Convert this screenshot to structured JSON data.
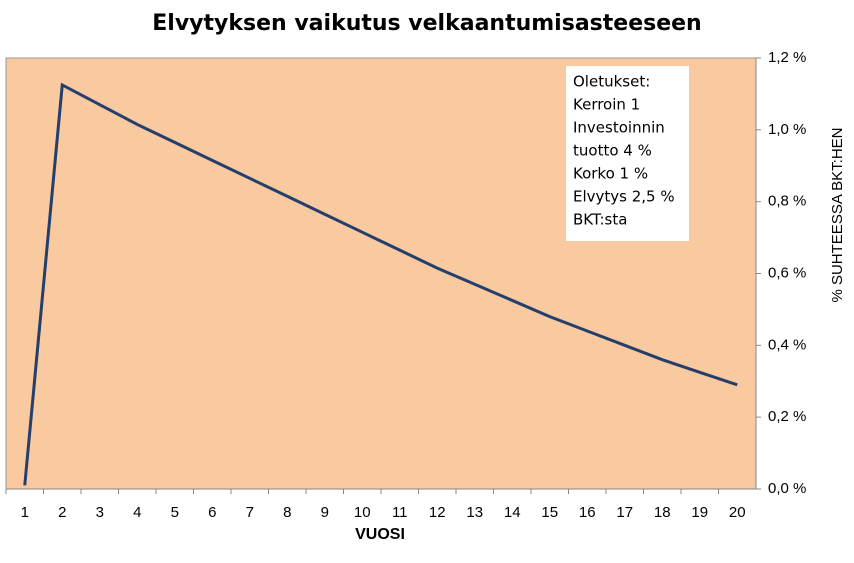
{
  "chart_data": {
    "type": "line",
    "title": "Elvytyksen vaikutus velkaantumisasteeseen",
    "x_label": "VUOSI",
    "y_label": "% SUHTEESSA BKT:HEN",
    "annotation": [
      "Oletukset:",
      "Kerroin 1",
      "Investoinnin",
      "tuotto 4 %",
      "Korko 1 %",
      "Elvytys 2,5 %",
      "BKT:sta"
    ],
    "categories": [
      "1",
      "2",
      "3",
      "4",
      "5",
      "6",
      "7",
      "8",
      "9",
      "10",
      "11",
      "12",
      "13",
      "14",
      "15",
      "16",
      "17",
      "18",
      "19",
      "20"
    ],
    "series": [
      {
        "name": "Velkaantumisaste",
        "color": "#243f6b",
        "values": [
          0.01,
          1.125,
          1.07,
          1.015,
          0.965,
          0.915,
          0.865,
          0.815,
          0.765,
          0.715,
          0.665,
          0.615,
          0.57,
          0.525,
          0.48,
          0.44,
          0.4,
          0.36,
          0.325,
          0.29
        ]
      }
    ],
    "ylim": [
      0,
      1.2
    ],
    "yticks": [
      {
        "value": 0,
        "label": "0,0 %"
      },
      {
        "value": 0.2,
        "label": "0,2 %"
      },
      {
        "value": 0.4,
        "label": "0,4 %"
      },
      {
        "value": 0.6,
        "label": "0,6 %"
      },
      {
        "value": 0.8,
        "label": "0,8 %"
      },
      {
        "value": 1.0,
        "label": "1,0 %"
      },
      {
        "value": 1.2,
        "label": "1,2 %"
      }
    ],
    "plot_background": "#f9c9a0",
    "y_axis_side": "right"
  }
}
